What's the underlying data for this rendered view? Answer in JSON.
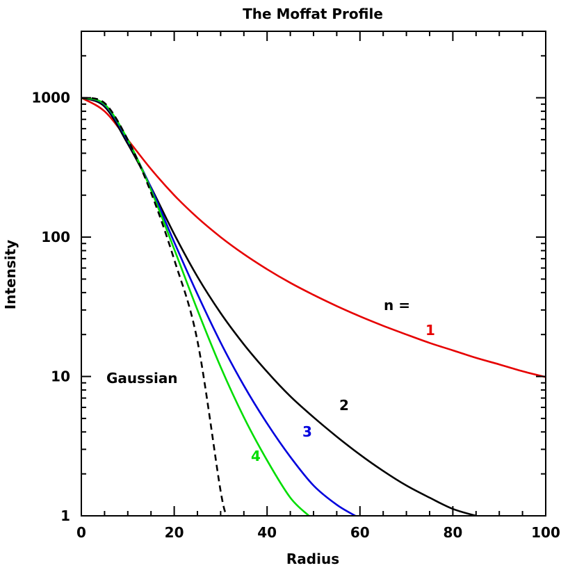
{
  "chart_data": {
    "type": "line",
    "title": "The Moffat Profile",
    "xlabel": "Radius",
    "ylabel": "Intensity",
    "xlim": [
      0,
      100
    ],
    "ylim": [
      1,
      3000
    ],
    "yscale": "log",
    "xticks": [
      "0",
      "20",
      "40",
      "60",
      "80",
      "100"
    ],
    "yticks": [
      "1",
      "10",
      "100",
      "1000"
    ],
    "legend_header": "n =",
    "series": [
      {
        "name": "1",
        "color": "#e60000",
        "dash": "solid",
        "x": [
          0,
          5,
          10,
          15,
          20,
          25,
          30,
          35,
          40,
          45,
          50,
          55,
          60,
          65,
          70,
          75,
          80,
          85,
          90,
          95,
          100
        ],
        "y": [
          1000,
          800,
          500,
          308,
          200,
          138,
          100,
          75.5,
          58.8,
          47,
          38.5,
          32,
          27,
          23.1,
          20,
          17.4,
          15.4,
          13.6,
          12.2,
          10.9,
          9.9
        ]
      },
      {
        "name": "2",
        "color": "#000000",
        "dash": "solid",
        "x": [
          0,
          5,
          10,
          15,
          20,
          25,
          30,
          35,
          40,
          45,
          50,
          55,
          60,
          65,
          70,
          75,
          80,
          85
        ],
        "y": [
          1000,
          865,
          467,
          228,
          105,
          52,
          28.5,
          17,
          10.8,
          7.2,
          5.1,
          3.7,
          2.75,
          2.1,
          1.65,
          1.35,
          1.12,
          1.0
        ]
      },
      {
        "name": "3",
        "color": "#0000dd",
        "dash": "solid",
        "x": [
          0,
          5,
          10,
          15,
          20,
          25,
          30,
          35,
          40,
          45,
          50,
          55,
          59
        ],
        "y": [
          1000,
          890,
          490,
          226,
          92,
          39,
          17.5,
          8.6,
          4.6,
          2.65,
          1.65,
          1.2,
          1.0
        ]
      },
      {
        "name": "4",
        "color": "#00dd00",
        "dash": "solid",
        "x": [
          0,
          5,
          10,
          15,
          20,
          25,
          30,
          35,
          40,
          45,
          49
        ],
        "y": [
          1000,
          900,
          500,
          218,
          82,
          30,
          11.7,
          5.1,
          2.5,
          1.35,
          1.0
        ]
      },
      {
        "name": "Gaussian",
        "color": "#000000",
        "dash": "dashed",
        "x": [
          0,
          5,
          10,
          15,
          20,
          25,
          30,
          31.5
        ],
        "y": [
          1000,
          917,
          500,
          209,
          69,
          18,
          1.5,
          1.0
        ]
      }
    ]
  }
}
